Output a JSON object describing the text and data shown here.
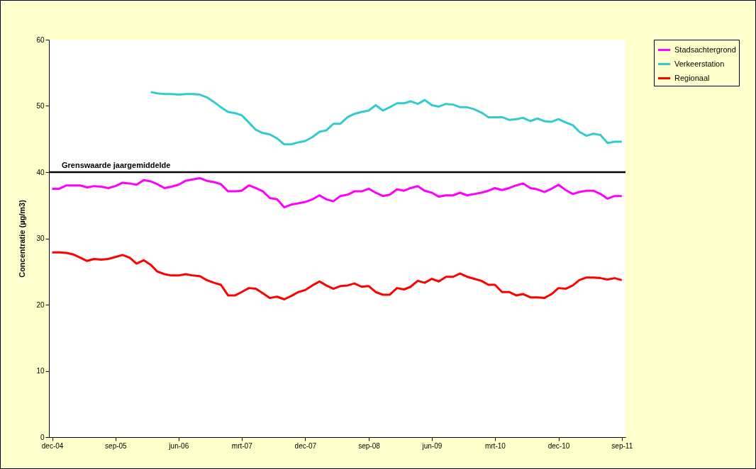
{
  "chart_data": {
    "type": "line",
    "ylabel": "Concentratie (µg/m3)",
    "x": [
      "2004-12",
      "2005-01",
      "2005-02",
      "2005-03",
      "2005-04",
      "2005-05",
      "2005-06",
      "2005-07",
      "2005-08",
      "2005-09",
      "2005-10",
      "2005-11",
      "2005-12",
      "2006-01",
      "2006-02",
      "2006-03",
      "2006-04",
      "2006-05",
      "2006-06",
      "2006-07",
      "2006-08",
      "2006-09",
      "2006-10",
      "2006-11",
      "2006-12",
      "2007-01",
      "2007-02",
      "2007-03",
      "2007-04",
      "2007-05",
      "2007-06",
      "2007-07",
      "2007-08",
      "2007-09",
      "2007-10",
      "2007-11",
      "2007-12",
      "2008-01",
      "2008-02",
      "2008-03",
      "2008-04",
      "2008-05",
      "2008-06",
      "2008-07",
      "2008-08",
      "2008-09",
      "2008-10",
      "2008-11",
      "2008-12",
      "2009-01",
      "2009-02",
      "2009-03",
      "2009-04",
      "2009-05",
      "2009-06",
      "2009-07",
      "2009-08",
      "2009-09",
      "2009-10",
      "2009-11",
      "2009-12",
      "2010-01",
      "2010-02",
      "2010-03",
      "2010-04",
      "2010-05",
      "2010-06",
      "2010-07",
      "2010-08",
      "2010-09",
      "2010-10",
      "2010-11",
      "2010-12",
      "2011-01",
      "2011-02",
      "2011-03",
      "2011-04",
      "2011-05",
      "2011-06",
      "2011-07",
      "2011-08",
      "2011-09"
    ],
    "series": [
      {
        "name": "Stadsachtergrond",
        "color": "#ff00ff",
        "values": [
          37.5,
          37.5,
          38.0,
          38.0,
          38.0,
          37.7,
          37.9,
          37.8,
          37.6,
          37.9,
          38.4,
          38.3,
          38.1,
          38.8,
          38.6,
          38.2,
          37.6,
          37.8,
          38.1,
          38.7,
          38.9,
          39.1,
          38.7,
          38.5,
          38.2,
          37.1,
          37.1,
          37.2,
          38.0,
          37.6,
          37.1,
          36.1,
          35.9,
          34.7,
          35.1,
          35.3,
          35.5,
          35.9,
          36.5,
          35.9,
          35.6,
          36.4,
          36.6,
          37.1,
          37.1,
          37.5,
          36.9,
          36.4,
          36.6,
          37.4,
          37.2,
          37.6,
          37.9,
          37.2,
          36.9,
          36.3,
          36.5,
          36.5,
          36.9,
          36.5,
          36.7,
          36.9,
          37.2,
          37.6,
          37.3,
          37.6,
          38.0,
          38.3,
          37.6,
          37.4,
          37.0,
          37.5,
          38.1,
          37.3,
          36.7,
          37.0,
          37.2,
          37.2,
          36.7,
          36.0,
          36.4,
          36.4
        ]
      },
      {
        "name": "Verkeerstation",
        "color": "#33cccc",
        "values": [
          null,
          null,
          null,
          null,
          null,
          null,
          null,
          null,
          null,
          null,
          null,
          null,
          null,
          null,
          52.1,
          51.9,
          51.8,
          51.8,
          51.7,
          51.8,
          51.8,
          51.7,
          51.3,
          50.6,
          49.8,
          49.1,
          48.9,
          48.6,
          47.5,
          46.4,
          45.9,
          45.7,
          45.1,
          44.2,
          44.2,
          44.5,
          44.7,
          45.3,
          46.1,
          46.3,
          47.3,
          47.3,
          48.3,
          48.8,
          49.1,
          49.3,
          50.1,
          49.3,
          49.8,
          50.4,
          50.4,
          50.7,
          50.3,
          50.9,
          50.1,
          49.9,
          50.3,
          50.2,
          49.8,
          49.8,
          49.5,
          49.0,
          48.3,
          48.3,
          48.3,
          47.9,
          48.0,
          48.2,
          47.7,
          48.1,
          47.7,
          47.6,
          48.0,
          47.5,
          47.1,
          46.1,
          45.5,
          45.8,
          45.6,
          44.4,
          44.6,
          44.6
        ]
      },
      {
        "name": "Regionaal",
        "color": "#ff0000",
        "values": [
          27.9,
          27.9,
          27.8,
          27.6,
          27.1,
          26.6,
          26.9,
          26.8,
          26.9,
          27.2,
          27.5,
          27.1,
          26.2,
          26.7,
          26.0,
          25.0,
          24.6,
          24.4,
          24.4,
          24.6,
          24.4,
          24.3,
          23.7,
          23.3,
          23.0,
          21.4,
          21.4,
          21.9,
          22.5,
          22.4,
          21.7,
          21.0,
          21.2,
          20.8,
          21.3,
          21.9,
          22.2,
          22.9,
          23.5,
          22.9,
          22.4,
          22.8,
          22.9,
          23.2,
          22.7,
          22.8,
          21.9,
          21.5,
          21.5,
          22.5,
          22.3,
          22.7,
          23.6,
          23.3,
          23.9,
          23.5,
          24.2,
          24.2,
          24.7,
          24.2,
          23.9,
          23.6,
          23.0,
          23.0,
          21.9,
          21.9,
          21.4,
          21.6,
          21.1,
          21.1,
          21.0,
          21.6,
          22.5,
          22.4,
          22.9,
          23.7,
          24.1,
          24.1,
          24.0,
          23.8,
          24.0,
          23.7
        ]
      }
    ],
    "xlim": [
      "2004-11-17",
      "2011-09-17"
    ],
    "xticks": [
      {
        "value": "2004-12",
        "label": "dec-04"
      },
      {
        "value": "2005-09",
        "label": "sep-05"
      },
      {
        "value": "2006-06",
        "label": "jun-06"
      },
      {
        "value": "2007-03",
        "label": "mrt-07"
      },
      {
        "value": "2007-12",
        "label": "dec-07"
      },
      {
        "value": "2008-09",
        "label": "sep-08"
      },
      {
        "value": "2009-06",
        "label": "jun-09"
      },
      {
        "value": "2010-03",
        "label": "mrt-10"
      },
      {
        "value": "2010-12",
        "label": "dec-10"
      },
      {
        "value": "2011-09",
        "label": "sep-11"
      }
    ],
    "ylim": [
      0,
      60
    ],
    "yticks": [
      0,
      10,
      20,
      30,
      40,
      50,
      60
    ],
    "ref_lines": [
      {
        "axis": "y",
        "value": 40,
        "label": "Grenswaarde jaargemiddelde",
        "color": "#000000"
      }
    ],
    "grid": false,
    "legend": "right",
    "marker": "none",
    "line_style": "solid"
  }
}
